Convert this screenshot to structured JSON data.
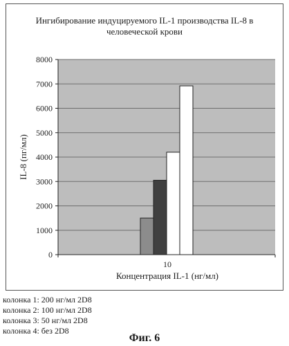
{
  "chart_data": {
    "type": "bar",
    "title_lines": [
      "Ингибирование индуцируемого IL-1 производства IL-8 в",
      "человеческой крови"
    ],
    "xlabel": "Концентрация IL-1 (нг/мл)",
    "ylabel": "IL-8 (пг/мл)",
    "ylim": [
      0,
      8000
    ],
    "yticks": [
      "0",
      "1000",
      "2000",
      "3000",
      "4000",
      "5000",
      "6000",
      "7000",
      "8000"
    ],
    "categories": [
      "10"
    ],
    "series": [
      {
        "name": "колонка 1",
        "values": [
          1500
        ],
        "color": "#8c8c8c"
      },
      {
        "name": "колонка 2",
        "values": [
          3050
        ],
        "color": "#404040"
      },
      {
        "name": "колонка 3",
        "values": [
          4200
        ],
        "color": "#ffffff"
      },
      {
        "name": "колонка 4",
        "values": [
          6920
        ],
        "color": "#ffffff"
      }
    ],
    "grid": true,
    "legend": "below"
  },
  "legend_items": [
    "колонка 1:  200 нг/мл 2D8",
    "колонка 2:  100 нг/мл 2D8",
    "колонка 3:  50 нг/мл 2D8",
    "колонка 4:  без 2D8"
  ],
  "figure_caption": "Фиг. 6"
}
